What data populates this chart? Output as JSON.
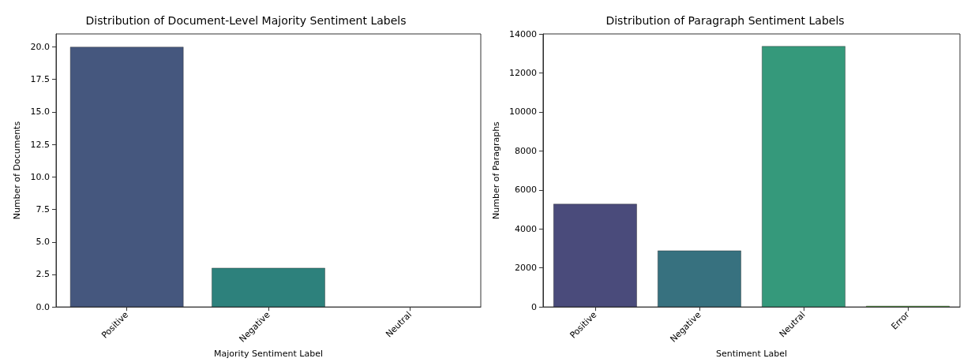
{
  "chart_data": [
    {
      "type": "bar",
      "title": "Distribution of Document-Level Majority Sentiment Labels",
      "xlabel": "Majority Sentiment Label",
      "ylabel": "Number of Documents",
      "categories": [
        "Positive",
        "Negative",
        "Neutral"
      ],
      "values": [
        20,
        3,
        0
      ],
      "colors": [
        "#45577e",
        "#2d817c",
        null
      ],
      "ylim": [
        0,
        21
      ],
      "yticks": [
        {
          "value": 0,
          "label": "0.0"
        },
        {
          "value": 2.5,
          "label": "2.5"
        },
        {
          "value": 5,
          "label": "5.0"
        },
        {
          "value": 7.5,
          "label": "7.5"
        },
        {
          "value": 10,
          "label": "10.0"
        },
        {
          "value": 12.5,
          "label": "12.5"
        },
        {
          "value": 15,
          "label": "15.0"
        },
        {
          "value": 17.5,
          "label": "17.5"
        },
        {
          "value": 20,
          "label": "20.0"
        }
      ],
      "grid": false
    },
    {
      "type": "bar",
      "title": "Distribution of Paragraph Sentiment Labels",
      "xlabel": "Sentiment Label",
      "ylabel": "Number of Paragraphs",
      "categories": [
        "Positive",
        "Negative",
        "Neutral",
        "Error"
      ],
      "values": [
        5280,
        2890,
        13370,
        50
      ],
      "colors": [
        "#4a4b7b",
        "#37717f",
        "#35997b",
        "#5ac23e"
      ],
      "ylim": [
        0,
        14000
      ],
      "yticks": [
        0,
        2000,
        4000,
        6000,
        8000,
        10000,
        12000,
        14000
      ],
      "grid": false
    }
  ]
}
